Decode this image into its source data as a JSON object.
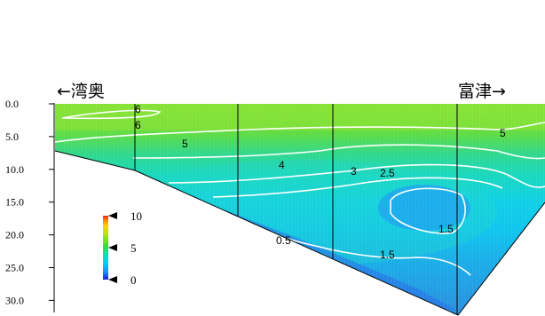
{
  "chart_data": {
    "type": "heatmap",
    "title": "",
    "xlabel": "",
    "ylabel": "",
    "left_label": "←湾奥",
    "right_label": "富津→",
    "y_axis": {
      "ticks": [
        "0.0",
        "5.0",
        "10.0",
        "15.0",
        "20.0",
        "25.0",
        "30.0"
      ],
      "values": [
        0,
        5,
        10,
        15,
        20,
        25,
        30
      ],
      "ylim": [
        0,
        32
      ],
      "reversed": true
    },
    "colorbar": {
      "ticks": [
        "10",
        "5",
        "0"
      ],
      "values": [
        10,
        5,
        0
      ],
      "range": [
        0,
        10
      ],
      "colors": [
        "#1a1ad6",
        "#1e90ff",
        "#00d4f0",
        "#16e0a0",
        "#33dd33",
        "#88e020",
        "#c8e010",
        "#ffd000",
        "#ff8800",
        "#ee2010"
      ]
    },
    "contour_labels": [
      "6",
      "6",
      "5",
      "5",
      "4",
      "3",
      "2.5",
      "1.5",
      "1.5",
      "0.5"
    ],
    "contour_levels": [
      0.5,
      1.5,
      2.5,
      3,
      4,
      5,
      6
    ],
    "stations": 5
  }
}
